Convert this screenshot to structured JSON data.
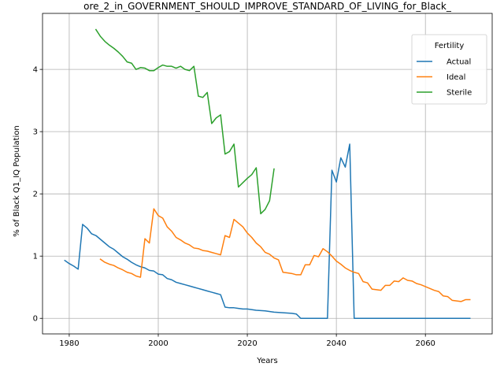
{
  "chart_data": {
    "type": "line",
    "title": "ore_2_in_GOVERNMENT_SHOULD_IMPROVE_STANDARD_OF_LIVING_for_Black_",
    "xlabel": "Years",
    "ylabel": "% of Black Q1_IQ Population",
    "xlim": [
      1974,
      2075
    ],
    "ylim": [
      -0.25,
      4.9
    ],
    "xticks": [
      1980,
      2000,
      2020,
      2040,
      2060
    ],
    "yticks": [
      0,
      1,
      2,
      3,
      4
    ],
    "grid": true,
    "legend": {
      "title": "Fertility",
      "position": "top-right"
    },
    "series": [
      {
        "name": "Actual",
        "color": "#1f77b4",
        "points": [
          [
            1979,
            0.93
          ],
          [
            1980,
            0.88
          ],
          [
            1981,
            0.84
          ],
          [
            1982,
            0.79
          ],
          [
            1983,
            1.51
          ],
          [
            1984,
            1.45
          ],
          [
            1985,
            1.36
          ],
          [
            1986,
            1.33
          ],
          [
            1987,
            1.27
          ],
          [
            1988,
            1.21
          ],
          [
            1989,
            1.15
          ],
          [
            1990,
            1.11
          ],
          [
            1991,
            1.05
          ],
          [
            1992,
            0.99
          ],
          [
            1993,
            0.95
          ],
          [
            1994,
            0.9
          ],
          [
            1995,
            0.86
          ],
          [
            1996,
            0.83
          ],
          [
            1997,
            0.81
          ],
          [
            1998,
            0.77
          ],
          [
            1999,
            0.76
          ],
          [
            2000,
            0.71
          ],
          [
            2001,
            0.7
          ],
          [
            2002,
            0.64
          ],
          [
            2003,
            0.62
          ],
          [
            2004,
            0.58
          ],
          [
            2005,
            0.56
          ],
          [
            2006,
            0.54
          ],
          [
            2007,
            0.52
          ],
          [
            2008,
            0.5
          ],
          [
            2009,
            0.48
          ],
          [
            2010,
            0.46
          ],
          [
            2011,
            0.44
          ],
          [
            2012,
            0.42
          ],
          [
            2013,
            0.4
          ],
          [
            2014,
            0.38
          ],
          [
            2015,
            0.18
          ],
          [
            2016,
            0.17
          ],
          [
            2017,
            0.17
          ],
          [
            2018,
            0.16
          ],
          [
            2019,
            0.15
          ],
          [
            2020,
            0.15
          ],
          [
            2022,
            0.13
          ],
          [
            2024,
            0.12
          ],
          [
            2026,
            0.1
          ],
          [
            2028,
            0.09
          ],
          [
            2030,
            0.08
          ],
          [
            2031,
            0.07
          ],
          [
            2032,
            0.0
          ],
          [
            2034,
            0.0
          ],
          [
            2036,
            0.0
          ],
          [
            2038,
            0.0
          ],
          [
            2039,
            2.38
          ],
          [
            2040,
            2.19
          ],
          [
            2041,
            2.58
          ],
          [
            2042,
            2.43
          ],
          [
            2043,
            2.8
          ],
          [
            2044,
            0.0
          ],
          [
            2046,
            0.0
          ],
          [
            2050,
            0.0
          ],
          [
            2055,
            0.0
          ],
          [
            2060,
            0.0
          ],
          [
            2065,
            0.0
          ],
          [
            2070,
            0.0
          ]
        ]
      },
      {
        "name": "Ideal",
        "color": "#ff7f0e",
        "points": [
          [
            1987,
            0.95
          ],
          [
            1988,
            0.9
          ],
          [
            1989,
            0.87
          ],
          [
            1990,
            0.85
          ],
          [
            1991,
            0.81
          ],
          [
            1992,
            0.78
          ],
          [
            1993,
            0.74
          ],
          [
            1994,
            0.72
          ],
          [
            1995,
            0.68
          ],
          [
            1996,
            0.66
          ],
          [
            1997,
            1.28
          ],
          [
            1998,
            1.21
          ],
          [
            1999,
            1.76
          ],
          [
            2000,
            1.65
          ],
          [
            2001,
            1.61
          ],
          [
            2002,
            1.47
          ],
          [
            2003,
            1.4
          ],
          [
            2004,
            1.3
          ],
          [
            2005,
            1.26
          ],
          [
            2006,
            1.21
          ],
          [
            2007,
            1.18
          ],
          [
            2008,
            1.13
          ],
          [
            2009,
            1.12
          ],
          [
            2010,
            1.09
          ],
          [
            2011,
            1.08
          ],
          [
            2012,
            1.06
          ],
          [
            2013,
            1.04
          ],
          [
            2014,
            1.02
          ],
          [
            2015,
            1.33
          ],
          [
            2016,
            1.3
          ],
          [
            2017,
            1.59
          ],
          [
            2018,
            1.53
          ],
          [
            2019,
            1.47
          ],
          [
            2020,
            1.37
          ],
          [
            2021,
            1.3
          ],
          [
            2022,
            1.21
          ],
          [
            2023,
            1.15
          ],
          [
            2024,
            1.06
          ],
          [
            2025,
            1.03
          ],
          [
            2026,
            0.97
          ],
          [
            2027,
            0.94
          ],
          [
            2028,
            0.74
          ],
          [
            2029,
            0.73
          ],
          [
            2030,
            0.72
          ],
          [
            2031,
            0.7
          ],
          [
            2032,
            0.7
          ],
          [
            2033,
            0.86
          ],
          [
            2034,
            0.86
          ],
          [
            2035,
            1.01
          ],
          [
            2036,
            0.99
          ],
          [
            2037,
            1.12
          ],
          [
            2038,
            1.07
          ],
          [
            2039,
            1.0
          ],
          [
            2040,
            0.92
          ],
          [
            2041,
            0.87
          ],
          [
            2042,
            0.81
          ],
          [
            2043,
            0.77
          ],
          [
            2044,
            0.74
          ],
          [
            2045,
            0.72
          ],
          [
            2046,
            0.59
          ],
          [
            2047,
            0.57
          ],
          [
            2048,
            0.47
          ],
          [
            2049,
            0.46
          ],
          [
            2050,
            0.45
          ],
          [
            2051,
            0.53
          ],
          [
            2052,
            0.53
          ],
          [
            2053,
            0.6
          ],
          [
            2054,
            0.59
          ],
          [
            2055,
            0.65
          ],
          [
            2056,
            0.61
          ],
          [
            2057,
            0.6
          ],
          [
            2058,
            0.56
          ],
          [
            2059,
            0.54
          ],
          [
            2060,
            0.51
          ],
          [
            2061,
            0.48
          ],
          [
            2062,
            0.45
          ],
          [
            2063,
            0.43
          ],
          [
            2064,
            0.36
          ],
          [
            2065,
            0.35
          ],
          [
            2066,
            0.29
          ],
          [
            2067,
            0.28
          ],
          [
            2068,
            0.27
          ],
          [
            2069,
            0.3
          ],
          [
            2070,
            0.3
          ]
        ]
      },
      {
        "name": "Sterile",
        "color": "#2ca02c",
        "points": [
          [
            1986,
            4.64
          ],
          [
            1987,
            4.53
          ],
          [
            1988,
            4.45
          ],
          [
            1989,
            4.39
          ],
          [
            1990,
            4.34
          ],
          [
            1991,
            4.28
          ],
          [
            1992,
            4.21
          ],
          [
            1993,
            4.12
          ],
          [
            1994,
            4.1
          ],
          [
            1995,
            4.0
          ],
          [
            1996,
            4.03
          ],
          [
            1997,
            4.02
          ],
          [
            1998,
            3.98
          ],
          [
            1999,
            3.98
          ],
          [
            2000,
            4.03
          ],
          [
            2001,
            4.07
          ],
          [
            2002,
            4.05
          ],
          [
            2003,
            4.05
          ],
          [
            2004,
            4.02
          ],
          [
            2005,
            4.05
          ],
          [
            2006,
            4.0
          ],
          [
            2007,
            3.98
          ],
          [
            2008,
            4.05
          ],
          [
            2009,
            3.57
          ],
          [
            2010,
            3.55
          ],
          [
            2011,
            3.63
          ],
          [
            2012,
            3.13
          ],
          [
            2013,
            3.22
          ],
          [
            2014,
            3.27
          ],
          [
            2015,
            2.64
          ],
          [
            2016,
            2.68
          ],
          [
            2017,
            2.8
          ],
          [
            2018,
            2.11
          ],
          [
            2019,
            2.18
          ],
          [
            2020,
            2.25
          ],
          [
            2021,
            2.31
          ],
          [
            2022,
            2.42
          ],
          [
            2023,
            1.68
          ],
          [
            2024,
            1.75
          ],
          [
            2025,
            1.89
          ],
          [
            2026,
            2.4
          ]
        ]
      }
    ]
  }
}
